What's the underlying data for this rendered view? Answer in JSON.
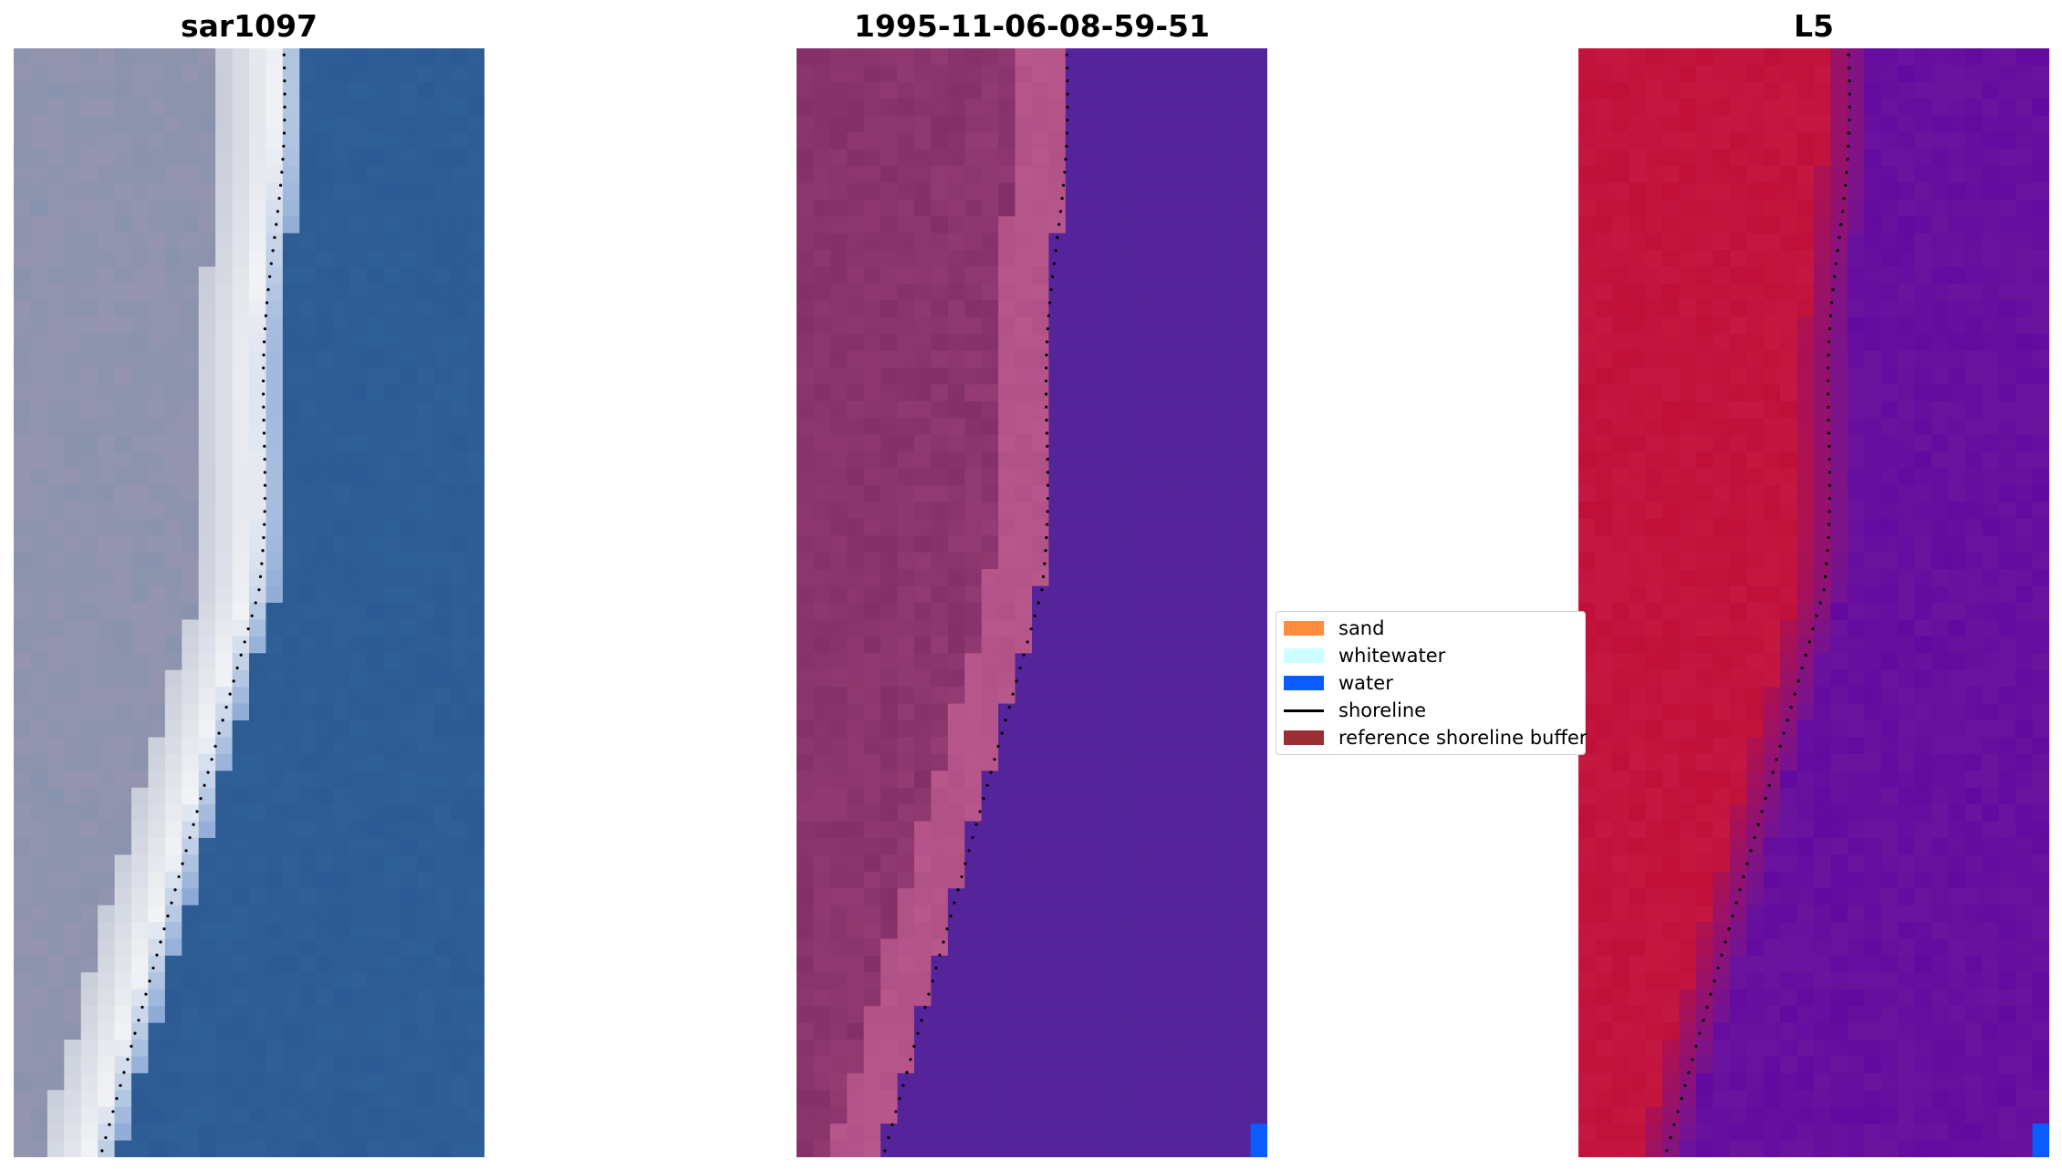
{
  "panels": [
    {
      "id": "rgb",
      "title": "sar1097"
    },
    {
      "id": "classified",
      "title": "1995-11-06-08-59-51"
    },
    {
      "id": "mndwi",
      "title": "L5"
    }
  ],
  "legend": {
    "items": [
      {
        "label": "sand",
        "color": "#ff8c3c",
        "kind": "patch"
      },
      {
        "label": "whitewater",
        "color": "#ccffff",
        "kind": "patch"
      },
      {
        "label": "water",
        "color": "#0a5cff",
        "kind": "patch"
      },
      {
        "label": "shoreline",
        "color": "#000000",
        "kind": "line"
      },
      {
        "label": "reference shoreline buffer",
        "color": "#9c2f35",
        "kind": "patch"
      }
    ]
  },
  "colors": {
    "rgb_land": "#8a93ad",
    "rgb_white": "#f2f3f6",
    "rgb_water": "#2f5f97",
    "class_land": "#843068",
    "class_sand_buffer": "#b8578c",
    "class_water": "#55249a",
    "class_water_pixel": "#0a5cff",
    "l5_land": "#c0103a",
    "l5_water": "#6a149e",
    "shoreline_dots": "#000000"
  }
}
